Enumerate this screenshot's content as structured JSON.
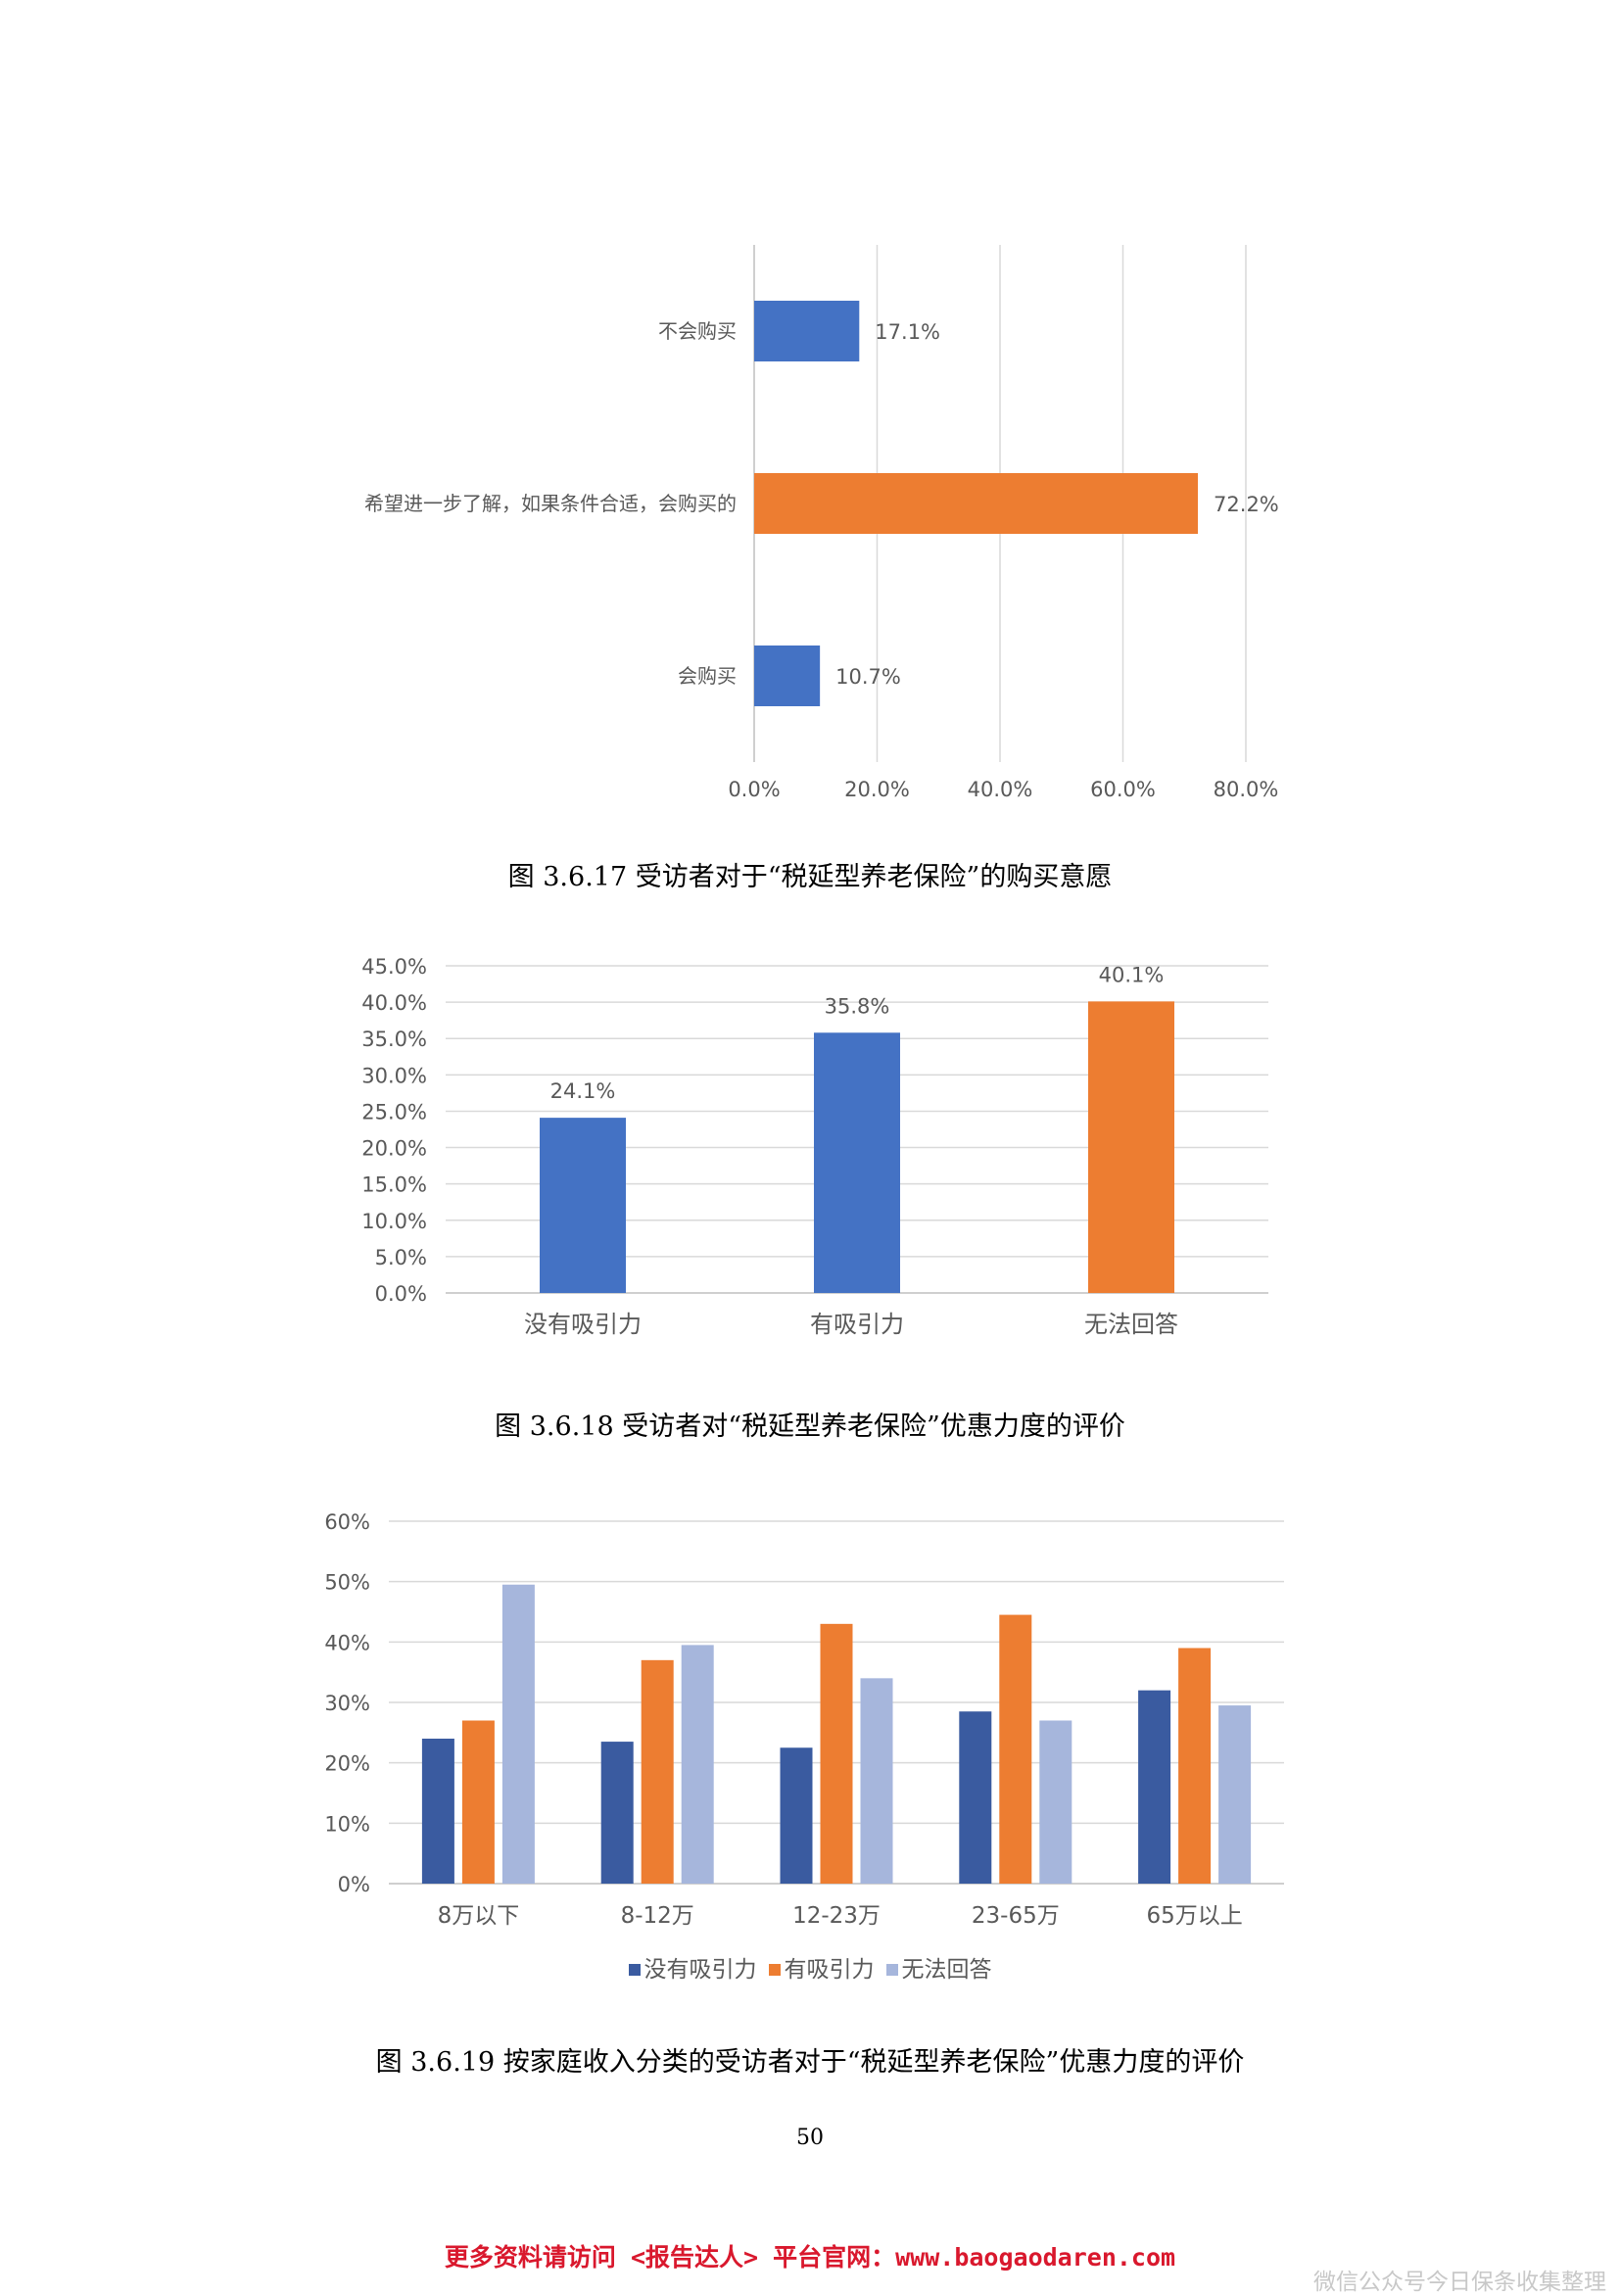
{
  "chart_data": [
    {
      "type": "bar",
      "orientation": "horizontal",
      "categories": [
        "不会购买",
        "希望进一步了解，如果条件合适，会购买的",
        "会购买"
      ],
      "values": [
        17.1,
        72.2,
        10.7
      ],
      "data_labels": [
        "17.1%",
        "72.2%",
        "10.7%"
      ],
      "bar_colors": [
        "#4472c4",
        "#ed7d31",
        "#4472c4"
      ],
      "xlim": [
        0,
        80
      ],
      "xticks": [
        "0.0%",
        "20.0%",
        "40.0%",
        "60.0%",
        "80.0%"
      ],
      "grid": "vertical",
      "caption": "图 3.6.17  受访者对于“税延型养老保险”的购买意愿"
    },
    {
      "type": "bar",
      "categories": [
        "没有吸引力",
        "有吸引力",
        "无法回答"
      ],
      "values": [
        24.1,
        35.8,
        40.1
      ],
      "data_labels": [
        "24.1%",
        "35.8%",
        "40.1%"
      ],
      "bar_colors": [
        "#4472c4",
        "#4472c4",
        "#ed7d31"
      ],
      "ylim": [
        0,
        45
      ],
      "yticks": [
        "0.0%",
        "5.0%",
        "10.0%",
        "15.0%",
        "20.0%",
        "25.0%",
        "30.0%",
        "35.0%",
        "40.0%",
        "45.0%"
      ],
      "grid": "horizontal",
      "caption": "图 3.6.18  受访者对“税延型养老保险”优惠力度的评价"
    },
    {
      "type": "bar",
      "categories": [
        "8万以下",
        "8-12万",
        "12-23万",
        "23-65万",
        "65万以上"
      ],
      "series": [
        {
          "name": "没有吸引力",
          "color": "#3a5ba0",
          "values": [
            24,
            23.5,
            22.5,
            28.5,
            32
          ]
        },
        {
          "name": "有吸引力",
          "color": "#ed7d31",
          "values": [
            27,
            37,
            43,
            44.5,
            39
          ]
        },
        {
          "name": "无法回答",
          "color": "#a6b6dc",
          "values": [
            49.5,
            39.5,
            34,
            27,
            29.5
          ]
        }
      ],
      "ylim": [
        0,
        60
      ],
      "yticks": [
        "0%",
        "10%",
        "20%",
        "30%",
        "40%",
        "50%",
        "60%"
      ],
      "grid": "horizontal",
      "legend_position": "bottom",
      "caption": "图 3.6.19  按家庭收入分类的受访者对于“税延型养老保险”优惠力度的评价"
    }
  ],
  "page_number": "50",
  "footer": {
    "link_text": "更多资料请访问 <报告达人> 平台官网：www.baogaodaren.com",
    "watermark": "微信公众号今日保条收集整理"
  }
}
